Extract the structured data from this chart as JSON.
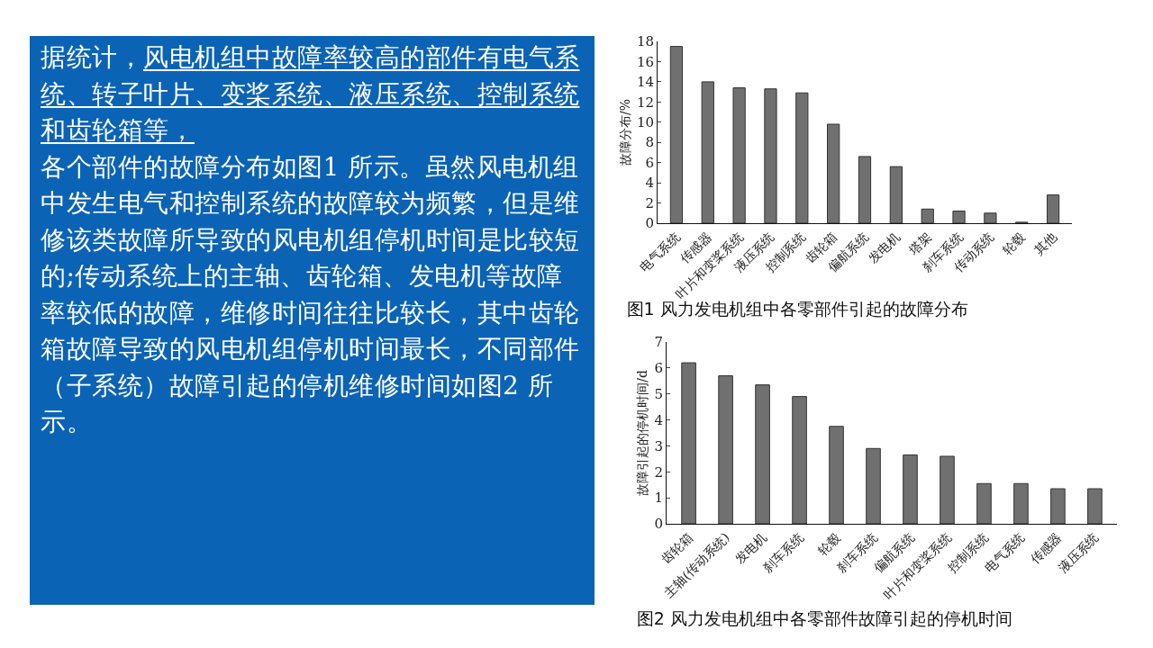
{
  "chart_data": [
    {
      "type": "other",
      "annotations": [
        "据统计，",
        "风电机组中故障率较高的部件有电气系统、转子叶片、变桨系统、液压系统、控制系统和齿轮箱等，",
        "各个部件的故障分布如图1 所示。虽然风电机组中发生电气和控制系统的故障较为频繁，但是维修该类故障所导致的风电机组停机时间是比较短的;传动系统上的主轴、齿轮箱、发电机等故障率较低的故障，维修时间往往比较长，其中齿轮箱故障导致的风电机组停机时间最长，不同部件（子系统）故障引起的停机维修时间如图2 所示。"
      ]
    },
    {
      "type": "bar",
      "title": "图1 风力发电机组中各零部件引起的故障分布",
      "ylabel": "故障分布/%",
      "color": "#707070",
      "categories": [
        "电气系统",
        "传感器",
        "叶片和变桨系统",
        "液压系统",
        "控制系统",
        "齿轮箱",
        "偏航系统",
        "发电机",
        "塔架",
        "刹车系统",
        "传动系统",
        "轮毂",
        "其他"
      ],
      "values": [
        17.5,
        14.0,
        13.4,
        13.3,
        12.9,
        9.8,
        6.6,
        5.6,
        1.4,
        1.2,
        1.0,
        0.1,
        2.8
      ],
      "ylim": [
        0,
        18
      ],
      "yticks": [
        0,
        2,
        4,
        6,
        8,
        10,
        12,
        14,
        16,
        18
      ],
      "grid": false,
      "legend": false
    },
    {
      "type": "bar",
      "title": "图2 风力发电机组中各零部件故障引起的停机时间",
      "ylabel": "故障引起的停机时间/d",
      "color": "#707070",
      "categories": [
        "齿轮箱",
        "主轴(传动系统)",
        "发电机",
        "刹车系统",
        "轮毂",
        "刹车系统",
        "偏航系统",
        "叶片和变桨系统",
        "控制系统",
        "电气系统",
        "传感器",
        "液压系统"
      ],
      "values": [
        6.2,
        5.7,
        5.35,
        4.9,
        3.75,
        2.9,
        2.65,
        2.6,
        1.55,
        1.55,
        1.35,
        1.35
      ],
      "ylim": [
        0,
        7
      ],
      "yticks": [
        0,
        1,
        2,
        3,
        4,
        5,
        6,
        7
      ],
      "grid": false,
      "legend": false
    }
  ]
}
